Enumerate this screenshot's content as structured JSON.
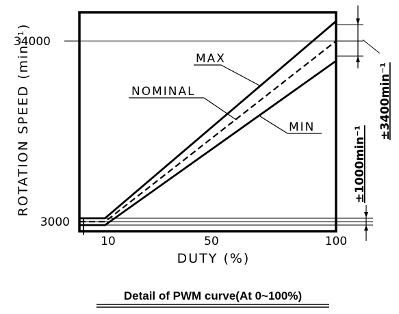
{
  "chart_data": {
    "type": "line",
    "title": "",
    "caption": "Detail of PWM curve(At 0~100%)",
    "xlabel": "DUTY (%)",
    "ylabel": "ROTATION SPEED (min⁻¹)",
    "xlim": [
      0,
      100
    ],
    "x_ticks": [
      "10",
      "50",
      "100"
    ],
    "y_ticks": [
      "3000",
      "34000"
    ],
    "series": [
      {
        "name": "MAX",
        "x": [
          0,
          10,
          100
        ],
        "y": [
          4000,
          4000,
          37400
        ]
      },
      {
        "name": "NOMINAL",
        "x": [
          0,
          10,
          100
        ],
        "y": [
          3000,
          3000,
          34000
        ]
      },
      {
        "name": "MIN",
        "x": [
          0,
          10,
          100
        ],
        "y": [
          2000,
          2000,
          30600
        ]
      }
    ],
    "annotations": [
      {
        "label": "±3400min⁻¹",
        "at_x": 100,
        "range": [
          30600,
          37400
        ]
      },
      {
        "label": "±1000min⁻¹",
        "at_x": 0,
        "range": [
          2000,
          4000
        ]
      }
    ],
    "grid": false,
    "legend": "none"
  }
}
